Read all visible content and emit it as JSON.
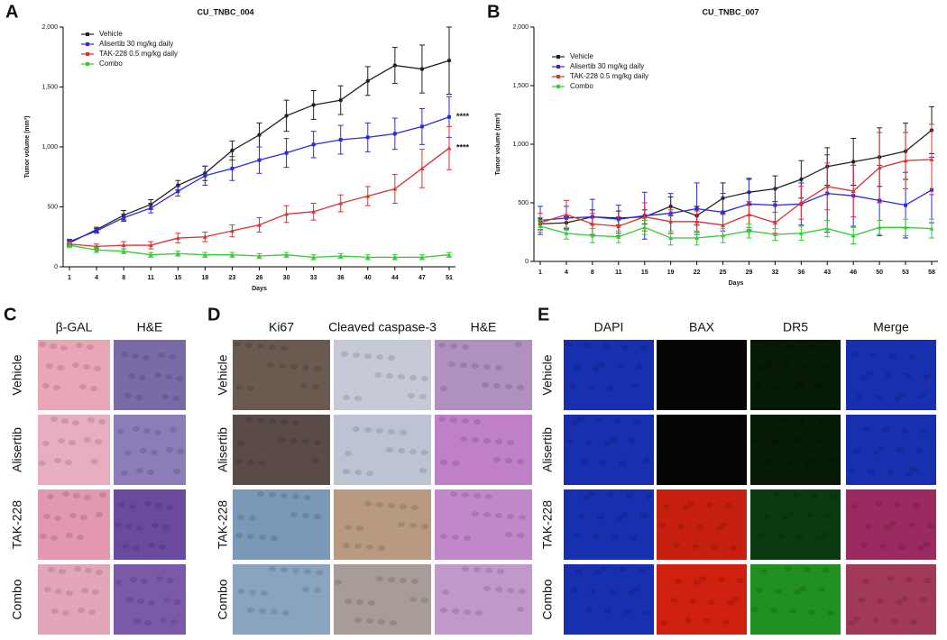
{
  "chart_data": [
    {
      "type": "line",
      "panel": "A",
      "title": "CU_TNBC_004",
      "xlabel": "Days",
      "ylabel": "Tumor volume (mm³)",
      "categories": [
        "1",
        "4",
        "8",
        "11",
        "15",
        "18",
        "23",
        "26",
        "30",
        "33",
        "36",
        "40",
        "44",
        "47",
        "51"
      ],
      "ylim": [
        0,
        2000
      ],
      "yticks": [
        0,
        500,
        {
          "value": 1000,
          "label": "1,000"
        },
        {
          "value": 1500,
          "label": "1,500"
        },
        {
          "value": 2000,
          "label": "2,000"
        }
      ],
      "legend": "upper left",
      "series": [
        {
          "name": "Vehicle",
          "color": "#222222",
          "marker": "circle",
          "values": [
            200,
            310,
            430,
            520,
            680,
            780,
            970,
            1100,
            1260,
            1350,
            1390,
            1550,
            1680,
            1650,
            1720
          ],
          "errors": [
            20,
            20,
            40,
            40,
            40,
            60,
            80,
            100,
            130,
            120,
            120,
            120,
            150,
            200,
            280
          ]
        },
        {
          "name": "Alisertib 30 mg/kg daily",
          "color": "#2a2ae0",
          "marker": "square",
          "values": [
            210,
            300,
            410,
            490,
            630,
            760,
            820,
            890,
            950,
            1020,
            1060,
            1080,
            1110,
            1170,
            1250
          ],
          "errors": [
            20,
            20,
            30,
            40,
            40,
            80,
            100,
            110,
            120,
            110,
            120,
            120,
            130,
            150,
            170
          ]
        },
        {
          "name": "TAK-228 0.5 mg/kg daily",
          "color": "#e03030",
          "marker": "triangle",
          "values": [
            190,
            170,
            180,
            180,
            240,
            250,
            300,
            350,
            440,
            460,
            530,
            590,
            650,
            820,
            990
          ],
          "errors": [
            20,
            20,
            30,
            30,
            40,
            40,
            50,
            60,
            70,
            70,
            70,
            80,
            120,
            160,
            180
          ]
        },
        {
          "name": "Combo",
          "color": "#33cc33",
          "marker": "triangle",
          "values": [
            180,
            140,
            130,
            100,
            110,
            100,
            100,
            90,
            100,
            80,
            90,
            80,
            80,
            80,
            100
          ],
          "errors": [
            20,
            20,
            20,
            20,
            20,
            20,
            20,
            20,
            20,
            20,
            20,
            20,
            20,
            20,
            20
          ]
        }
      ],
      "annotations": [
        {
          "text": "****",
          "value": 1250
        },
        {
          "text": "****",
          "value": 990
        }
      ]
    },
    {
      "type": "line",
      "panel": "B",
      "title": "CU_TNBC_007",
      "xlabel": "Days",
      "ylabel": "Tumor volume (mm³)",
      "categories": [
        "1",
        "4",
        "8",
        "11",
        "15",
        "19",
        "22",
        "25",
        "29",
        "32",
        "36",
        "43",
        "46",
        "50",
        "53",
        "58"
      ],
      "ylim": [
        0,
        2000
      ],
      "yticks": [
        0,
        500,
        {
          "value": 1000,
          "label": "1,000"
        },
        {
          "value": 1500,
          "label": "1,500"
        },
        {
          "value": 2000,
          "label": "2,000"
        }
      ],
      "legend": "upper left",
      "series": [
        {
          "name": "Vehicle",
          "color": "#222222",
          "marker": "circle",
          "values": [
            320,
            330,
            380,
            370,
            380,
            470,
            390,
            540,
            590,
            620,
            700,
            810,
            850,
            890,
            940,
            1120
          ],
          "errors": [
            50,
            50,
            60,
            60,
            60,
            80,
            80,
            130,
            110,
            110,
            160,
            160,
            200,
            250,
            240,
            200
          ]
        },
        {
          "name": "Alisertib 30 mg/kg daily",
          "color": "#2a2ae0",
          "marker": "square",
          "values": [
            350,
            370,
            380,
            360,
            390,
            410,
            450,
            420,
            490,
            480,
            490,
            580,
            560,
            520,
            480,
            610
          ],
          "errors": [
            120,
            100,
            150,
            120,
            200,
            170,
            220,
            160,
            220,
            140,
            180,
            330,
            260,
            300,
            280,
            280
          ]
        },
        {
          "name": "TAK-228 0.5 mg/kg daily",
          "color": "#e03030",
          "marker": "triangle",
          "values": [
            330,
            400,
            320,
            300,
            380,
            340,
            340,
            310,
            400,
            330,
            500,
            640,
            600,
            800,
            860,
            870
          ],
          "errors": [
            80,
            120,
            90,
            80,
            120,
            100,
            90,
            90,
            110,
            90,
            140,
            200,
            220,
            300,
            240,
            300
          ]
        },
        {
          "name": "Combo",
          "color": "#33cc33",
          "marker": "triangle",
          "values": [
            300,
            240,
            220,
            210,
            290,
            200,
            200,
            220,
            260,
            230,
            240,
            280,
            220,
            290,
            290,
            280
          ],
          "errors": [
            50,
            50,
            60,
            50,
            60,
            60,
            60,
            60,
            60,
            50,
            60,
            70,
            70,
            60,
            70,
            80
          ]
        }
      ]
    }
  ],
  "panels": [
    {
      "letter": "C",
      "columns": [
        "β-GAL",
        "H&E"
      ],
      "rows": [
        "Vehicle",
        "Alisertib",
        "TAK-228",
        "Combo"
      ]
    },
    {
      "letter": "D",
      "columns": [
        "Ki67",
        "Cleaved caspase-3",
        "H&E"
      ],
      "rows": [
        "Vehicle",
        "Alisertib",
        "TAK-228",
        "Combo"
      ]
    },
    {
      "letter": "E",
      "columns": [
        "DAPI",
        "BAX",
        "DR5",
        "Merge"
      ],
      "rows": [
        "Vehicle",
        "Alisertib",
        "TAK-228",
        "Combo"
      ]
    }
  ]
}
